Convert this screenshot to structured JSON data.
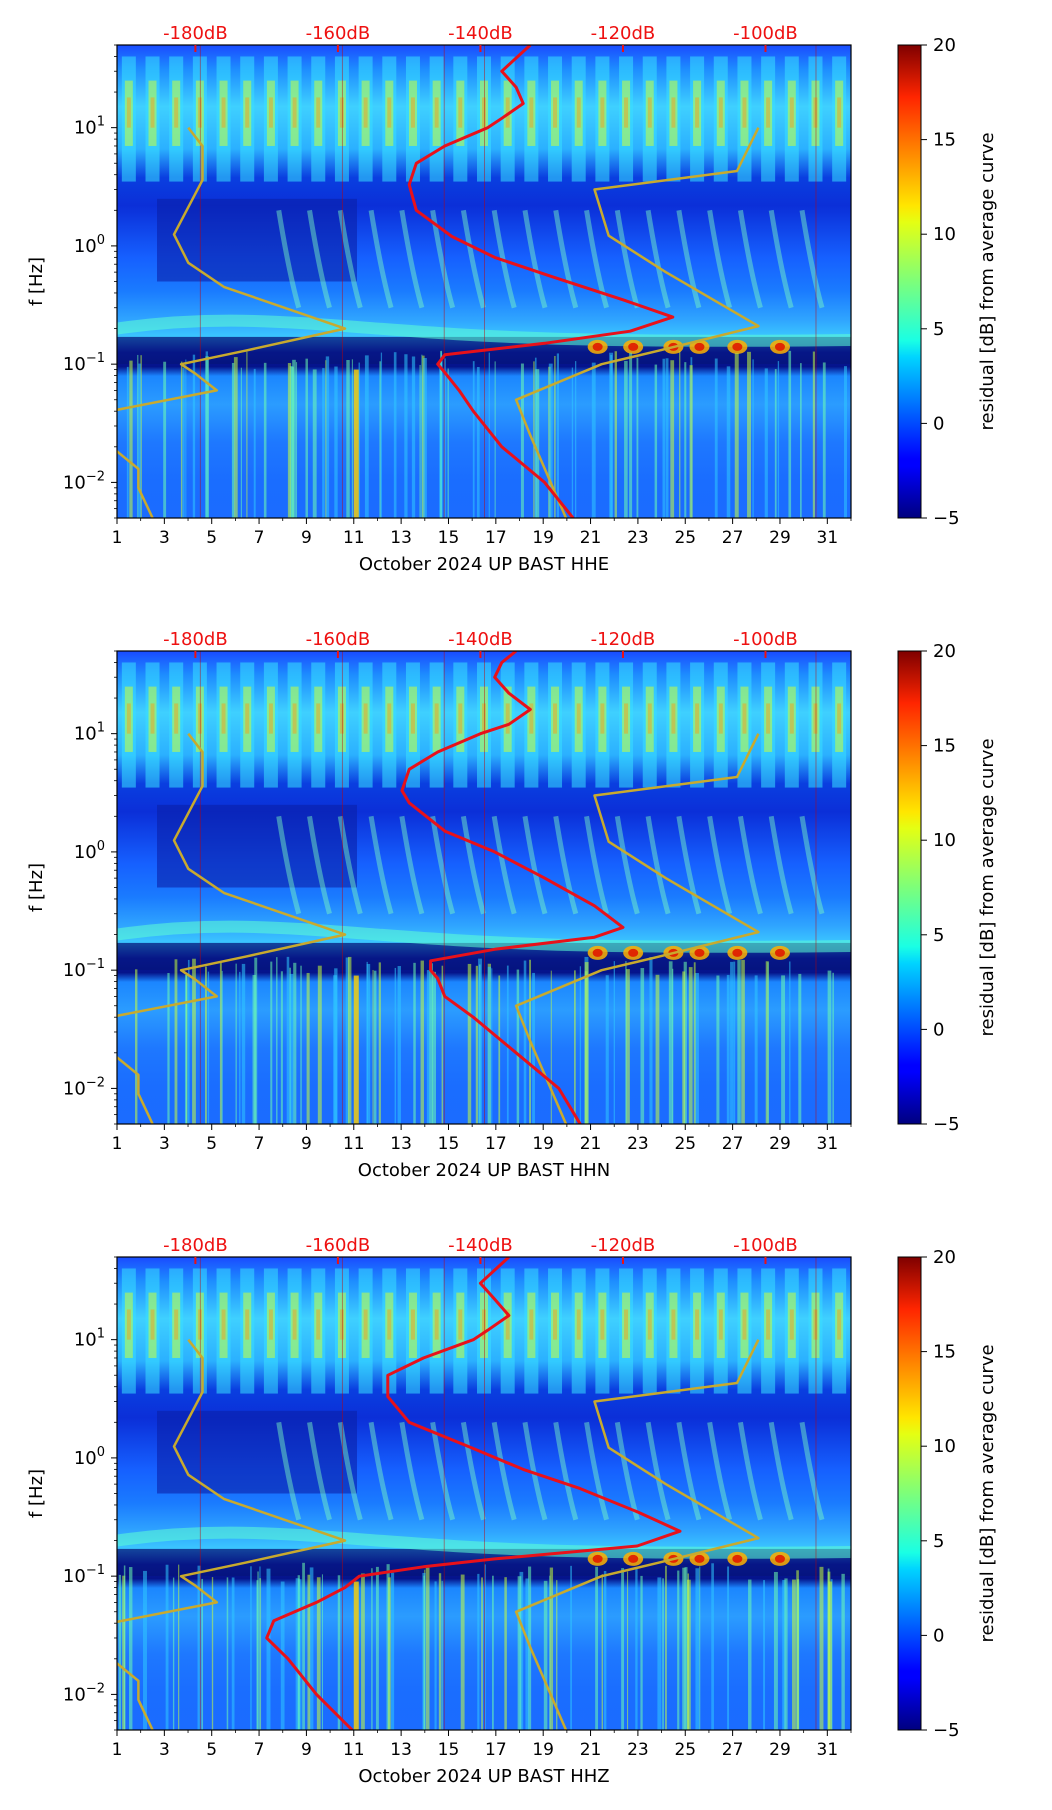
{
  "chart_data": {
    "type": "heatmap",
    "description_units": "spectrogram residuals",
    "panels": [
      {
        "id": "hhe",
        "xlabel": "October 2024 UP BAST  HHE",
        "ylabel": "f [Hz]",
        "colorbar_label": "residual [dB] from average curve",
        "xlim": [
          1,
          32
        ],
        "ylim": [
          0.005,
          50
        ],
        "x_ticks": [
          "1",
          "3",
          "5",
          "7",
          "9",
          "11",
          "13",
          "15",
          "17",
          "19",
          "21",
          "23",
          "25",
          "27",
          "29",
          "31"
        ],
        "y_ticks": [
          {
            "value": 0.01,
            "base": "10",
            "exp": "−2"
          },
          {
            "value": 0.1,
            "base": "10",
            "exp": "−1"
          },
          {
            "value": 1,
            "base": "10",
            "exp": "0"
          },
          {
            "value": 10,
            "base": "10",
            "exp": "1"
          }
        ],
        "db_axis": {
          "range": [
            -191,
            -88
          ],
          "ticks": [
            {
              "value": -180,
              "label": "-180dB"
            },
            {
              "value": -160,
              "label": "-160dB"
            },
            {
              "value": -140,
              "label": "-140dB"
            },
            {
              "value": -120,
              "label": "-120dB"
            },
            {
              "value": -100,
              "label": "-100dB"
            }
          ]
        },
        "avg_curve_db_vs_freq": [
          [
            -133,
            50
          ],
          [
            -137,
            30
          ],
          [
            -135,
            22
          ],
          [
            -134,
            16
          ],
          [
            -137,
            12
          ],
          [
            -139,
            10
          ],
          [
            -145,
            7
          ],
          [
            -149,
            5
          ],
          [
            -150,
            3.3
          ],
          [
            -149,
            2
          ],
          [
            -144,
            1.2
          ],
          [
            -138,
            0.8
          ],
          [
            -130,
            0.55
          ],
          [
            -120,
            0.35
          ],
          [
            -113,
            0.25
          ],
          [
            -119,
            0.19
          ],
          [
            -131,
            0.15
          ],
          [
            -145,
            0.12
          ],
          [
            -146,
            0.1
          ],
          [
            -145,
            0.085
          ],
          [
            -143,
            0.06
          ],
          [
            -141,
            0.04
          ],
          [
            -137,
            0.02
          ],
          [
            -131,
            0.01
          ],
          [
            -127,
            0.005
          ]
        ],
        "model_curve_db_vs_freq": [
          [
            -101,
            10
          ],
          [
            -104,
            4.3
          ],
          [
            -124,
            3.0
          ],
          [
            -122,
            1.22
          ],
          [
            -114,
            0.6
          ],
          [
            -101,
            0.21
          ],
          [
            -115,
            0.13
          ],
          [
            -123,
            0.1
          ],
          [
            -135,
            0.05
          ],
          [
            -133,
            0.025
          ],
          [
            -128,
            0.005
          ]
        ],
        "low_model_curve_db_vs_freq": [
          [
            -181,
            10
          ],
          [
            -179,
            7
          ],
          [
            -179,
            3.6
          ],
          [
            -183,
            1.25
          ],
          [
            -181,
            0.72
          ],
          [
            -176,
            0.45
          ],
          [
            -159,
            0.2
          ],
          [
            -173,
            0.13
          ],
          [
            -182,
            0.1
          ],
          [
            -180,
            0.083
          ],
          [
            -177,
            0.06
          ],
          [
            -192,
            0.04
          ],
          [
            -193,
            0.023
          ],
          [
            -188,
            0.013
          ],
          [
            -188,
            0.009
          ],
          [
            -186,
            0.005
          ]
        ]
      },
      {
        "id": "hhn",
        "xlabel": "October 2024 UP BAST  HHN",
        "ylabel": "f [Hz]",
        "colorbar_label": "residual [dB] from average curve",
        "xlim": [
          1,
          32
        ],
        "ylim": [
          0.005,
          50
        ],
        "x_ticks": [
          "1",
          "3",
          "5",
          "7",
          "9",
          "11",
          "13",
          "15",
          "17",
          "19",
          "21",
          "23",
          "25",
          "27",
          "29",
          "31"
        ],
        "y_ticks": [
          {
            "value": 0.01,
            "base": "10",
            "exp": "−2"
          },
          {
            "value": 0.1,
            "base": "10",
            "exp": "−1"
          },
          {
            "value": 1,
            "base": "10",
            "exp": "0"
          },
          {
            "value": 10,
            "base": "10",
            "exp": "1"
          }
        ],
        "db_axis": {
          "range": [
            -191,
            -88
          ],
          "ticks": [
            {
              "value": -180,
              "label": "-180dB"
            },
            {
              "value": -160,
              "label": "-160dB"
            },
            {
              "value": -140,
              "label": "-140dB"
            },
            {
              "value": -120,
              "label": "-120dB"
            },
            {
              "value": -100,
              "label": "-100dB"
            }
          ]
        },
        "avg_curve_db_vs_freq": [
          [
            -135,
            50
          ],
          [
            -137,
            40
          ],
          [
            -138,
            30
          ],
          [
            -136,
            22
          ],
          [
            -133,
            16
          ],
          [
            -136,
            12
          ],
          [
            -140,
            10
          ],
          [
            -146,
            7
          ],
          [
            -150,
            5
          ],
          [
            -151,
            3.3
          ],
          [
            -150,
            2.6
          ],
          [
            -145,
            1.5
          ],
          [
            -138,
            1.0
          ],
          [
            -131,
            0.6
          ],
          [
            -124,
            0.35
          ],
          [
            -120,
            0.23
          ],
          [
            -124,
            0.19
          ],
          [
            -138,
            0.15
          ],
          [
            -147,
            0.12
          ],
          [
            -147,
            0.1
          ],
          [
            -146,
            0.085
          ],
          [
            -145,
            0.06
          ],
          [
            -141,
            0.04
          ],
          [
            -135,
            0.02
          ],
          [
            -129,
            0.01
          ],
          [
            -126,
            0.005
          ]
        ],
        "model_curve_db_vs_freq": [
          [
            -101,
            10
          ],
          [
            -104,
            4.3
          ],
          [
            -124,
            3.0
          ],
          [
            -122,
            1.22
          ],
          [
            -114,
            0.6
          ],
          [
            -101,
            0.21
          ],
          [
            -115,
            0.13
          ],
          [
            -123,
            0.1
          ],
          [
            -135,
            0.05
          ],
          [
            -133,
            0.025
          ],
          [
            -128,
            0.005
          ]
        ],
        "low_model_curve_db_vs_freq": [
          [
            -181,
            10
          ],
          [
            -179,
            7
          ],
          [
            -179,
            3.6
          ],
          [
            -183,
            1.25
          ],
          [
            -181,
            0.72
          ],
          [
            -176,
            0.45
          ],
          [
            -159,
            0.2
          ],
          [
            -173,
            0.13
          ],
          [
            -182,
            0.1
          ],
          [
            -180,
            0.083
          ],
          [
            -177,
            0.06
          ],
          [
            -192,
            0.04
          ],
          [
            -193,
            0.023
          ],
          [
            -188,
            0.013
          ],
          [
            -188,
            0.009
          ],
          [
            -186,
            0.005
          ]
        ]
      },
      {
        "id": "hhz",
        "xlabel": "October 2024 UP BAST  HHZ",
        "ylabel": "f [Hz]",
        "colorbar_label": "residual [dB] from average curve",
        "xlim": [
          1,
          32
        ],
        "ylim": [
          0.005,
          50
        ],
        "x_ticks": [
          "1",
          "3",
          "5",
          "7",
          "9",
          "11",
          "13",
          "15",
          "17",
          "19",
          "21",
          "23",
          "25",
          "27",
          "29",
          "31"
        ],
        "y_ticks": [
          {
            "value": 0.01,
            "base": "10",
            "exp": "−2"
          },
          {
            "value": 0.1,
            "base": "10",
            "exp": "−1"
          },
          {
            "value": 1,
            "base": "10",
            "exp": "0"
          },
          {
            "value": 10,
            "base": "10",
            "exp": "1"
          }
        ],
        "db_axis": {
          "range": [
            -191,
            -88
          ],
          "ticks": [
            {
              "value": -180,
              "label": "-180dB"
            },
            {
              "value": -160,
              "label": "-160dB"
            },
            {
              "value": -140,
              "label": "-140dB"
            },
            {
              "value": -120,
              "label": "-120dB"
            },
            {
              "value": -100,
              "label": "-100dB"
            }
          ]
        },
        "avg_curve_db_vs_freq": [
          [
            -136,
            50
          ],
          [
            -140,
            30
          ],
          [
            -138,
            22
          ],
          [
            -136,
            16
          ],
          [
            -139,
            12
          ],
          [
            -141,
            10
          ],
          [
            -148,
            7
          ],
          [
            -153,
            5
          ],
          [
            -153,
            3.3
          ],
          [
            -150,
            2.0
          ],
          [
            -141,
            1.2
          ],
          [
            -134,
            0.8
          ],
          [
            -126,
            0.55
          ],
          [
            -118,
            0.35
          ],
          [
            -112,
            0.24
          ],
          [
            -118,
            0.18
          ],
          [
            -138,
            0.14
          ],
          [
            -148,
            0.12
          ],
          [
            -157,
            0.1
          ],
          [
            -159,
            0.08
          ],
          [
            -163,
            0.06
          ],
          [
            -169,
            0.042
          ],
          [
            -170,
            0.03
          ],
          [
            -167,
            0.02
          ],
          [
            -163,
            0.01
          ],
          [
            -158,
            0.005
          ]
        ],
        "model_curve_db_vs_freq": [
          [
            -101,
            10
          ],
          [
            -104,
            4.3
          ],
          [
            -124,
            3.0
          ],
          [
            -122,
            1.22
          ],
          [
            -114,
            0.6
          ],
          [
            -101,
            0.21
          ],
          [
            -115,
            0.13
          ],
          [
            -123,
            0.1
          ],
          [
            -135,
            0.05
          ],
          [
            -133,
            0.025
          ],
          [
            -128,
            0.005
          ]
        ],
        "low_model_curve_db_vs_freq": [
          [
            -181,
            10
          ],
          [
            -179,
            7
          ],
          [
            -179,
            3.6
          ],
          [
            -183,
            1.25
          ],
          [
            -181,
            0.72
          ],
          [
            -176,
            0.45
          ],
          [
            -159,
            0.2
          ],
          [
            -173,
            0.13
          ],
          [
            -182,
            0.1
          ],
          [
            -180,
            0.083
          ],
          [
            -177,
            0.06
          ],
          [
            -192,
            0.04
          ],
          [
            -193,
            0.023
          ],
          [
            -188,
            0.013
          ],
          [
            -188,
            0.009
          ],
          [
            -186,
            0.005
          ]
        ]
      }
    ],
    "colorbar": {
      "range": [
        -5,
        20
      ],
      "ticks": [
        {
          "value": 20,
          "label": "20"
        },
        {
          "value": 15,
          "label": "15"
        },
        {
          "value": 10,
          "label": "10"
        },
        {
          "value": 5,
          "label": "5"
        },
        {
          "value": 0,
          "label": "0"
        },
        {
          "value": -5,
          "label": "−5"
        }
      ],
      "colormap": "jet"
    },
    "colors": {
      "avg_curve": "#e8111a",
      "model_curve": "#c8aa2e",
      "db_axis_text": "#ee1111"
    }
  }
}
